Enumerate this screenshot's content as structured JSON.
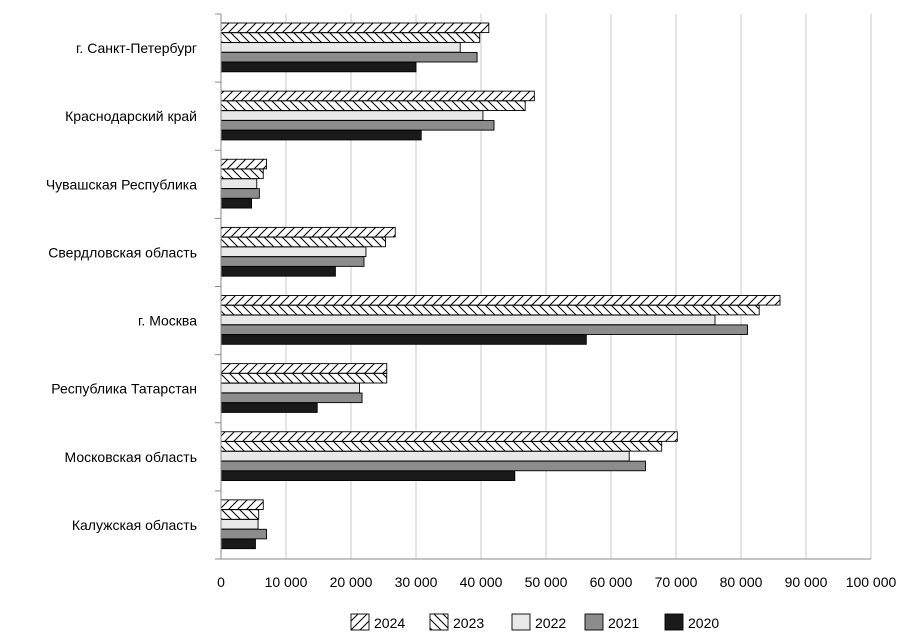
{
  "chart_data": {
    "type": "bar",
    "orientation": "horizontal",
    "categories": [
      "г. Санкт-Петербург",
      "Краснодарский край",
      "Чувашская Республика",
      "Свердловская область",
      "г. Москва",
      "Республика Татарстан",
      "Московская область",
      "Калужская область"
    ],
    "series": [
      {
        "name": "2024",
        "pattern": "diag-up",
        "values": [
          41200,
          48200,
          7000,
          26800,
          86000,
          25500,
          70200,
          6500
        ]
      },
      {
        "name": "2023",
        "pattern": "diag-down",
        "values": [
          39800,
          46800,
          6500,
          25300,
          82800,
          25500,
          67800,
          5800
        ]
      },
      {
        "name": "2022",
        "color": "#e8e8e8",
        "values": [
          36800,
          40300,
          5500,
          22300,
          76000,
          21300,
          62800,
          5700
        ]
      },
      {
        "name": "2021",
        "color": "#8c8c8c",
        "values": [
          39400,
          42000,
          5900,
          22000,
          81000,
          21700,
          65300,
          7000
        ]
      },
      {
        "name": "2020",
        "color": "#1a1a1a",
        "values": [
          30000,
          30800,
          4700,
          17600,
          56200,
          14800,
          45200,
          5300
        ]
      }
    ],
    "xlim": [
      0,
      100000
    ],
    "x_ticks": [
      "0",
      "10 000",
      "20 000",
      "30 000",
      "40 000",
      "50 000",
      "60 000",
      "70 000",
      "80 000",
      "90 000",
      "100 000"
    ],
    "grid": true,
    "legend_position": "bottom",
    "title": "",
    "xlabel": "",
    "ylabel": ""
  }
}
